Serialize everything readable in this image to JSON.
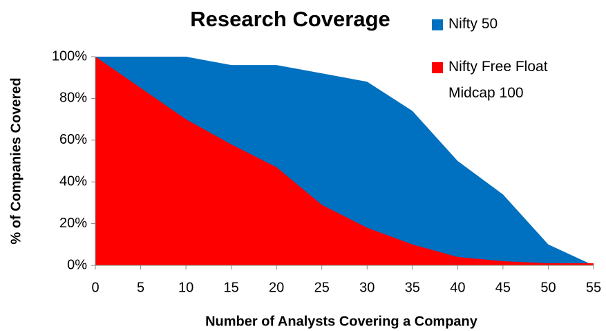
{
  "chart_data": {
    "type": "area",
    "title": "Research Coverage",
    "xlabel": "Number of Analysts Covering a Company",
    "ylabel": "% of Companies Covered",
    "x": [
      0,
      5,
      10,
      15,
      20,
      25,
      30,
      35,
      40,
      45,
      50,
      55
    ],
    "series": [
      {
        "name": "Nifty 50",
        "color": "#0070c0",
        "values": [
          100,
          100,
          100,
          96,
          96,
          92,
          88,
          74,
          50,
          34,
          10,
          0
        ]
      },
      {
        "name": "Nifty Free Float Midcap 100",
        "color": "#ff0000",
        "values": [
          100,
          85,
          70,
          58,
          47,
          29,
          18,
          10,
          4,
          2,
          1,
          1
        ]
      }
    ],
    "xlim": [
      0,
      55
    ],
    "xticks": [
      0,
      5,
      10,
      15,
      20,
      25,
      30,
      35,
      40,
      45,
      50,
      55
    ],
    "ylim": [
      0,
      100
    ],
    "yticks": [
      {
        "value": 0,
        "label": "0%"
      },
      {
        "value": 20,
        "label": "20%"
      },
      {
        "value": 40,
        "label": "40%"
      },
      {
        "value": 60,
        "label": "60%"
      },
      {
        "value": 80,
        "label": "80%"
      },
      {
        "value": 100,
        "label": "100%"
      }
    ],
    "legend": "top-right"
  }
}
